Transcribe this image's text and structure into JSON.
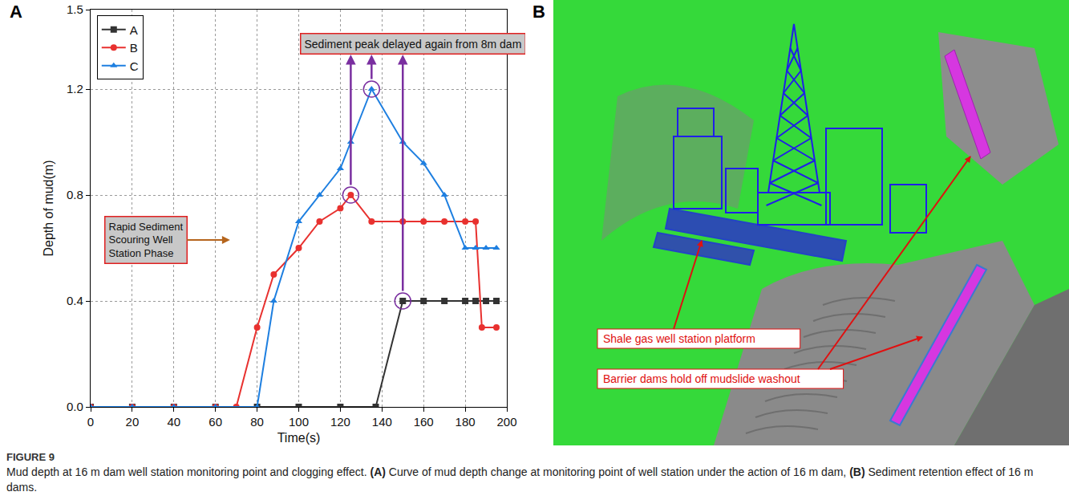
{
  "figure": {
    "label": "FIGURE 9",
    "caption": "Mud depth at 16 m dam well station monitoring point and clogging effect.",
    "parts": [
      {
        "label": "(A)",
        "text": "Curve of mud depth change at monitoring point of well station under the action of 16 m dam,"
      },
      {
        "label": "(B)",
        "text": "Sediment retention effect of 16 m dams."
      }
    ]
  },
  "chart_data": {
    "panel": "A",
    "type": "line",
    "xlabel": "Time(s)",
    "ylabel": "Depth of mud(m)",
    "xlim": [
      0,
      200
    ],
    "xticks": [
      0,
      20,
      40,
      60,
      80,
      100,
      120,
      140,
      160,
      180,
      200
    ],
    "ylim": [
      0,
      1.5
    ],
    "yticks": [
      {
        "value": 0,
        "label": "0.0"
      },
      0.4,
      0.8,
      1.2,
      1.5
    ],
    "grid": true,
    "legend": "top left",
    "annotations": [
      "Sediment peak delayed again from 8m dam",
      "Rapid Sediment Scouring Well Station Phase"
    ],
    "series": [
      {
        "name": "A",
        "color": "#333333",
        "marker": "square",
        "x": [
          0,
          20,
          40,
          60,
          80,
          100,
          120,
          137,
          150,
          160,
          170,
          180,
          185,
          190,
          195
        ],
        "values": [
          0,
          0,
          0,
          0,
          0,
          0,
          0,
          0,
          0.4,
          0.4,
          0.4,
          0.4,
          0.4,
          0.4,
          0.4
        ]
      },
      {
        "name": "B",
        "color": "#e8312f",
        "marker": "circle",
        "x": [
          0,
          20,
          40,
          60,
          70,
          80,
          88,
          100,
          110,
          120,
          125,
          135,
          150,
          160,
          170,
          180,
          185,
          188,
          195
        ],
        "values": [
          0,
          0,
          0,
          0,
          0,
          0.3,
          0.5,
          0.6,
          0.7,
          0.75,
          0.8,
          0.7,
          0.7,
          0.7,
          0.7,
          0.7,
          0.7,
          0.3,
          0.3
        ]
      },
      {
        "name": "C",
        "color": "#1e7fe0",
        "marker": "triangle-up",
        "x": [
          0,
          20,
          40,
          60,
          80,
          88,
          100,
          110,
          120,
          125,
          135,
          150,
          160,
          170,
          180,
          185,
          190,
          195
        ],
        "values": [
          0,
          0,
          0,
          0,
          0,
          0.4,
          0.7,
          0.8,
          0.9,
          1.0,
          1.2,
          1.0,
          0.92,
          0.8,
          0.6,
          0.6,
          0.6,
          0.6
        ]
      }
    ]
  },
  "image_panel": {
    "panel": "B",
    "labels": [
      "Shale gas well station platform",
      "Barrier dams hold off mudslide washout"
    ]
  }
}
